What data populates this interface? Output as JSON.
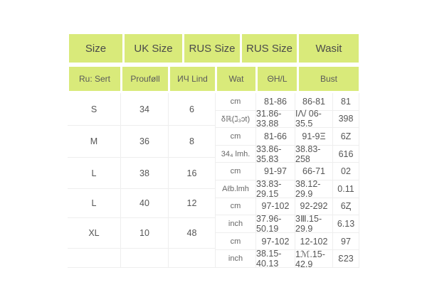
{
  "colors": {
    "header_bg": "#d9ea7a",
    "text": "#555555"
  },
  "header_row1": [
    "Size",
    "UK Size",
    "RUS Size",
    "RUS Size",
    "Wasit"
  ],
  "header_row2": [
    "Ru: Sert",
    "Prouføll",
    "ИЧ Lind",
    "Wat",
    "ΘH/L",
    "Bust"
  ],
  "sizes": [
    {
      "size": "S",
      "uk": "34",
      "rus": "6"
    },
    {
      "size": "M",
      "uk": "36",
      "rus": "8"
    },
    {
      "size": "L",
      "uk": "38",
      "rus": "16"
    },
    {
      "size": "L",
      "uk": "40",
      "rus": "12"
    },
    {
      "size": "XL",
      "uk": "10",
      "rus": "48"
    },
    {
      "size": "",
      "uk": "",
      "rus": ""
    }
  ],
  "measures": [
    [
      "cm",
      "81-86",
      "86-81",
      "81"
    ],
    [
      "δℝ(ℷ₃ↄt)",
      "31.86-33.88",
      "ΙΛ/ 06-35.5",
      "398"
    ],
    [
      "cm",
      "81-66",
      "91-9Ξ",
      "6Z"
    ],
    [
      "34₄ lmh.",
      "33.86-35.83",
      "38.83-258",
      "616"
    ],
    [
      "cm",
      "91-97",
      "66-71",
      "02"
    ],
    [
      "Aℓb.lmh",
      "33.83-29.15",
      "38.12-29.9",
      "0.11"
    ],
    [
      "cm",
      "97-102",
      "92-292",
      "6Ⱬ"
    ],
    [
      "inch",
      "37.96-50.19",
      "3Ⅲ.15-29.9",
      "6.13"
    ],
    [
      "cm",
      "97-102",
      "12-102",
      "97"
    ],
    [
      "inch",
      "38.15-40.13",
      "1ℳ.15-42.9",
      "Ɛ23"
    ]
  ]
}
